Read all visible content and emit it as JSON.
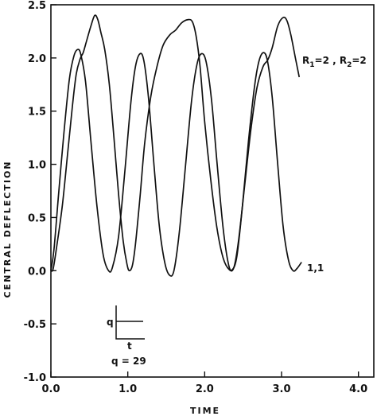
{
  "chart_data": {
    "type": "line",
    "xlabel": "TIME",
    "ylabel": "CENTRAL DEFLECTION",
    "xlim": [
      0,
      4.2
    ],
    "ylim": [
      -1.0,
      2.5
    ],
    "xticks": [
      "0.0",
      "1.0",
      "2.0",
      "3.0",
      "4.0"
    ],
    "yticks": [
      "2.5",
      "2.0",
      "1.5",
      "1.0",
      "0.5",
      "0.0",
      "-0.5",
      "-1.0"
    ],
    "series": [
      {
        "label_r1": "R",
        "label_r1_sub": "1",
        "label_r1_val": "=2 , ",
        "label_r2": "R",
        "label_r2_sub": "2",
        "label_r2_val": "=2",
        "points": [
          [
            0.0,
            0.0
          ],
          [
            0.03,
            0.02
          ],
          [
            0.08,
            0.25
          ],
          [
            0.15,
            0.62
          ],
          [
            0.22,
            1.12
          ],
          [
            0.28,
            1.55
          ],
          [
            0.33,
            1.85
          ],
          [
            0.38,
            1.99
          ],
          [
            0.42,
            2.05
          ],
          [
            0.46,
            2.15
          ],
          [
            0.52,
            2.3
          ],
          [
            0.57,
            2.4
          ],
          [
            0.61,
            2.36
          ],
          [
            0.65,
            2.24
          ],
          [
            0.7,
            2.08
          ],
          [
            0.76,
            1.75
          ],
          [
            0.82,
            1.25
          ],
          [
            0.88,
            0.72
          ],
          [
            0.94,
            0.28
          ],
          [
            0.99,
            0.06
          ],
          [
            1.02,
            0.0
          ],
          [
            1.06,
            0.05
          ],
          [
            1.1,
            0.25
          ],
          [
            1.16,
            0.7
          ],
          [
            1.22,
            1.2
          ],
          [
            1.3,
            1.64
          ],
          [
            1.38,
            1.92
          ],
          [
            1.46,
            2.12
          ],
          [
            1.55,
            2.22
          ],
          [
            1.62,
            2.26
          ],
          [
            1.7,
            2.33
          ],
          [
            1.78,
            2.36
          ],
          [
            1.84,
            2.34
          ],
          [
            1.89,
            2.2
          ],
          [
            1.94,
            1.92
          ],
          [
            2.0,
            1.4
          ],
          [
            2.08,
            0.85
          ],
          [
            2.16,
            0.4
          ],
          [
            2.24,
            0.12
          ],
          [
            2.32,
            0.01
          ],
          [
            2.38,
            0.03
          ],
          [
            2.44,
            0.28
          ],
          [
            2.52,
            0.8
          ],
          [
            2.6,
            1.32
          ],
          [
            2.68,
            1.72
          ],
          [
            2.76,
            1.92
          ],
          [
            2.82,
            1.98
          ],
          [
            2.88,
            2.1
          ],
          [
            2.95,
            2.3
          ],
          [
            3.02,
            2.38
          ],
          [
            3.07,
            2.35
          ],
          [
            3.12,
            2.22
          ],
          [
            3.18,
            2.0
          ],
          [
            3.23,
            1.82
          ]
        ]
      },
      {
        "label": "1,1",
        "points": [
          [
            0.0,
            0.0
          ],
          [
            0.04,
            0.2
          ],
          [
            0.1,
            0.72
          ],
          [
            0.17,
            1.3
          ],
          [
            0.24,
            1.8
          ],
          [
            0.3,
            2.02
          ],
          [
            0.35,
            2.08
          ],
          [
            0.39,
            2.03
          ],
          [
            0.45,
            1.78
          ],
          [
            0.52,
            1.22
          ],
          [
            0.6,
            0.6
          ],
          [
            0.68,
            0.15
          ],
          [
            0.75,
            0.0
          ],
          [
            0.8,
            0.03
          ],
          [
            0.88,
            0.32
          ],
          [
            0.96,
            0.92
          ],
          [
            1.04,
            1.58
          ],
          [
            1.1,
            1.92
          ],
          [
            1.16,
            2.04
          ],
          [
            1.21,
            1.97
          ],
          [
            1.27,
            1.62
          ],
          [
            1.34,
            1.0
          ],
          [
            1.41,
            0.42
          ],
          [
            1.48,
            0.08
          ],
          [
            1.54,
            -0.04
          ],
          [
            1.6,
            0.0
          ],
          [
            1.67,
            0.36
          ],
          [
            1.75,
            0.98
          ],
          [
            1.83,
            1.6
          ],
          [
            1.9,
            1.94
          ],
          [
            1.96,
            2.04
          ],
          [
            2.02,
            1.96
          ],
          [
            2.09,
            1.6
          ],
          [
            2.16,
            1.02
          ],
          [
            2.24,
            0.4
          ],
          [
            2.31,
            0.06
          ],
          [
            2.36,
            0.01
          ],
          [
            2.42,
            0.14
          ],
          [
            2.49,
            0.6
          ],
          [
            2.57,
            1.22
          ],
          [
            2.65,
            1.74
          ],
          [
            2.71,
            1.98
          ],
          [
            2.77,
            2.05
          ],
          [
            2.82,
            1.96
          ],
          [
            2.88,
            1.62
          ],
          [
            2.95,
            1.0
          ],
          [
            3.02,
            0.42
          ],
          [
            3.09,
            0.1
          ],
          [
            3.15,
            0.0
          ],
          [
            3.2,
            0.02
          ],
          [
            3.26,
            0.08
          ]
        ]
      }
    ],
    "inset": {
      "q_label": "q",
      "t_label": "t",
      "value_label": "q = 29"
    }
  }
}
